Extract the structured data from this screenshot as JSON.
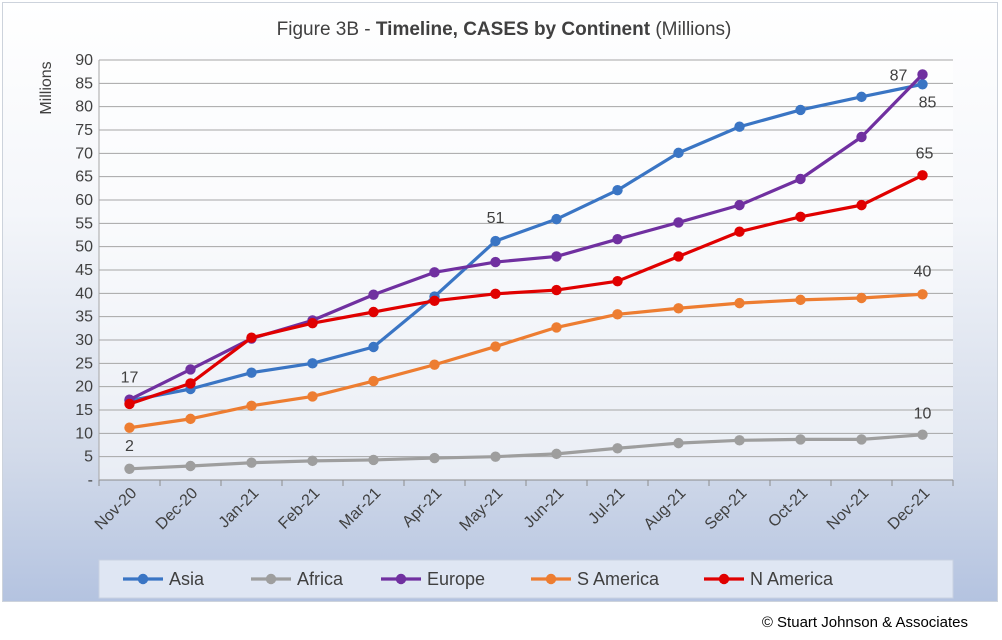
{
  "chart_data": {
    "type": "line",
    "title_prefix": "Figure 3B - ",
    "title_bold": "Timeline, CASES by Continent",
    "title_suffix": " (Millions)",
    "ylabel": "Millions",
    "xlabel": "",
    "ylim": [
      0,
      90
    ],
    "ytick_step": 5,
    "ytick_zero_label": "-",
    "grid": true,
    "legend_position": "bottom",
    "categories": [
      "Nov-20",
      "Dec-20",
      "Jan-21",
      "Feb-21",
      "Mar-21",
      "Apr-21",
      "May-21",
      "Jun-21",
      "Jul-21",
      "Aug-21",
      "Sep-21",
      "Oct-21",
      "Nov-21",
      "Dec-21"
    ],
    "series": [
      {
        "name": "Asia",
        "color": "#3a75c4",
        "values": [
          17.0,
          19.5,
          23.0,
          25.0,
          28.5,
          39.3,
          51.2,
          55.9,
          62.1,
          70.1,
          75.7,
          79.3,
          82.1,
          84.8
        ]
      },
      {
        "name": "Africa",
        "color": "#9e9e9e",
        "values": [
          2.4,
          3.0,
          3.7,
          4.1,
          4.3,
          4.7,
          5.0,
          5.6,
          6.8,
          7.9,
          8.5,
          8.7,
          8.7,
          9.7
        ]
      },
      {
        "name": "Europe",
        "color": "#7030a0",
        "values": [
          17.2,
          23.7,
          30.3,
          34.2,
          39.7,
          44.5,
          46.7,
          47.9,
          51.6,
          55.2,
          58.9,
          64.5,
          73.5,
          86.9
        ]
      },
      {
        "name": "S America",
        "color": "#ed7d31",
        "values": [
          11.2,
          13.1,
          15.9,
          17.9,
          21.2,
          24.7,
          28.6,
          32.7,
          35.5,
          36.8,
          37.9,
          38.6,
          39.0,
          39.8
        ]
      },
      {
        "name": "N America",
        "color": "#e00000",
        "values": [
          16.3,
          20.7,
          30.5,
          33.6,
          36.0,
          38.4,
          39.9,
          40.7,
          42.6,
          47.9,
          53.2,
          56.4,
          58.9,
          65.3
        ]
      }
    ],
    "annotations": [
      {
        "text": "17",
        "series": 0,
        "index": 0
      },
      {
        "text": "2",
        "series": 1,
        "index": 0
      },
      {
        "text": "51",
        "series": 0,
        "index": 6
      },
      {
        "text": "87",
        "series": 2,
        "index": 13
      },
      {
        "text": "85",
        "series": 0,
        "index": 13
      },
      {
        "text": "65",
        "series": 4,
        "index": 13
      },
      {
        "text": "40",
        "series": 3,
        "index": 13
      },
      {
        "text": "10",
        "series": 1,
        "index": 13
      }
    ]
  },
  "copyright": "© Stuart Johnson & Associates"
}
